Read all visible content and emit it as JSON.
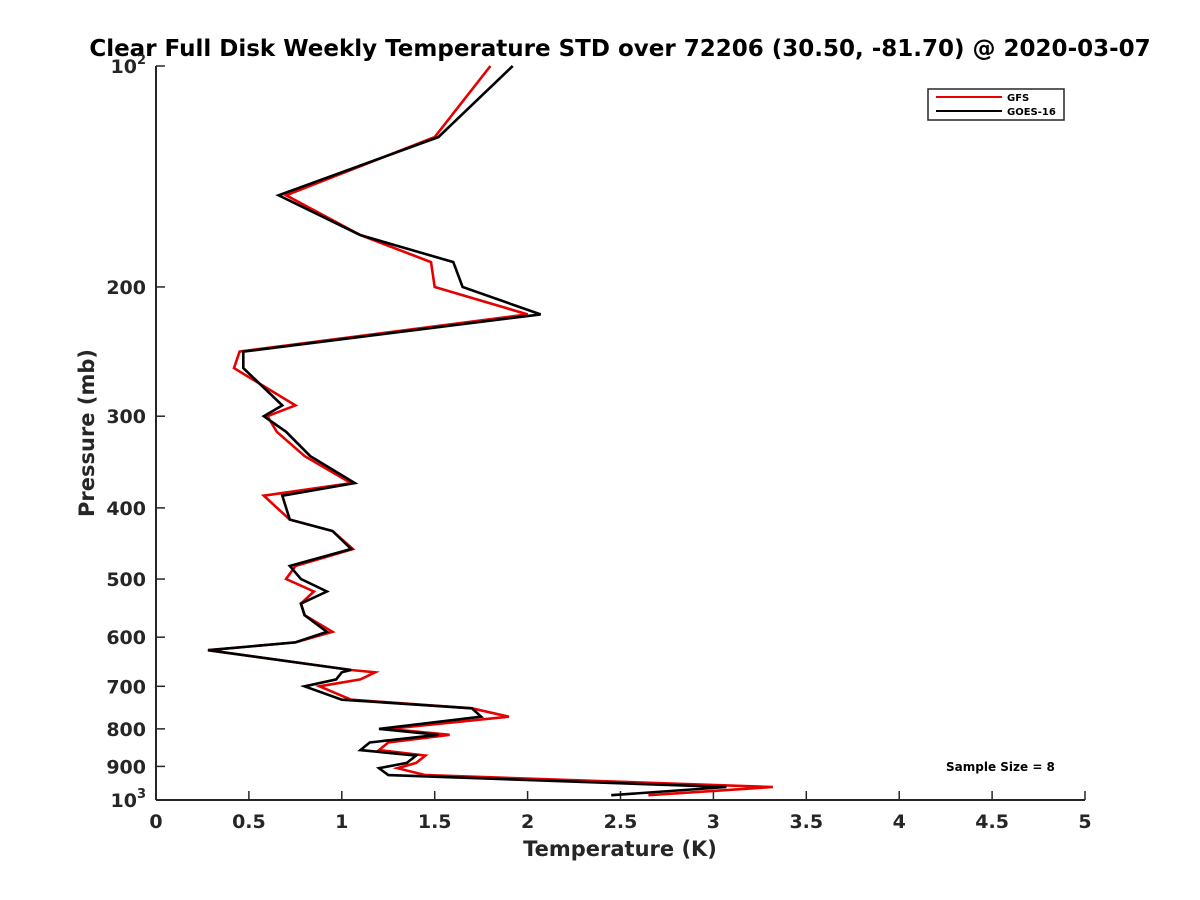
{
  "chart_data": {
    "type": "line",
    "title": "Clear Full Disk Weekly Temperature STD over 72206 (30.50, -81.70) @ 2020-03-07",
    "xlabel": "Temperature (K)",
    "ylabel": "Pressure (mb)",
    "xlim": [
      0,
      5
    ],
    "ylim": [
      1000,
      100
    ],
    "yscale": "log",
    "y_reversed": true,
    "grid": false,
    "legend_position": "top-right",
    "xticks": [
      {
        "value": 0,
        "label": "0"
      },
      {
        "value": 0.5,
        "label": "0.5"
      },
      {
        "value": 1,
        "label": "1"
      },
      {
        "value": 1.5,
        "label": "1.5"
      },
      {
        "value": 2,
        "label": "2"
      },
      {
        "value": 2.5,
        "label": "2.5"
      },
      {
        "value": 3,
        "label": "3"
      },
      {
        "value": 3.5,
        "label": "3.5"
      },
      {
        "value": 4,
        "label": "4"
      },
      {
        "value": 4.5,
        "label": "4.5"
      },
      {
        "value": 5,
        "label": "5"
      }
    ],
    "yticks": [
      {
        "value": 100,
        "label": "10",
        "sup": "2"
      },
      {
        "value": 200,
        "label": "200"
      },
      {
        "value": 300,
        "label": "300"
      },
      {
        "value": 400,
        "label": "400"
      },
      {
        "value": 500,
        "label": "500"
      },
      {
        "value": 600,
        "label": "600"
      },
      {
        "value": 700,
        "label": "700"
      },
      {
        "value": 800,
        "label": "800"
      },
      {
        "value": 900,
        "label": "900"
      },
      {
        "value": 1000,
        "label": "10",
        "sup": "3"
      }
    ],
    "series": [
      {
        "name": "GFS",
        "color": "#e60000",
        "points": [
          [
            1.8,
            100
          ],
          [
            1.5,
            125
          ],
          [
            0.7,
            150
          ],
          [
            1.1,
            170
          ],
          [
            1.48,
            185
          ],
          [
            1.5,
            200
          ],
          [
            2.0,
            218
          ],
          [
            0.45,
            245
          ],
          [
            0.42,
            258
          ],
          [
            0.75,
            290
          ],
          [
            0.6,
            300
          ],
          [
            0.65,
            315
          ],
          [
            0.8,
            340
          ],
          [
            1.05,
            370
          ],
          [
            0.58,
            385
          ],
          [
            0.72,
            415
          ],
          [
            0.95,
            430
          ],
          [
            1.06,
            455
          ],
          [
            0.75,
            480
          ],
          [
            0.7,
            500
          ],
          [
            0.85,
            520
          ],
          [
            0.78,
            540
          ],
          [
            0.8,
            560
          ],
          [
            0.95,
            590
          ],
          [
            0.75,
            610
          ],
          [
            0.28,
            625
          ],
          [
            1.05,
            665
          ],
          [
            1.18,
            670
          ],
          [
            1.1,
            685
          ],
          [
            0.88,
            700
          ],
          [
            1.05,
            730
          ],
          [
            1.7,
            750
          ],
          [
            1.9,
            770
          ],
          [
            1.25,
            800
          ],
          [
            1.58,
            815
          ],
          [
            1.25,
            835
          ],
          [
            1.2,
            855
          ],
          [
            1.45,
            870
          ],
          [
            1.4,
            890
          ],
          [
            1.3,
            905
          ],
          [
            1.45,
            925
          ],
          [
            3.32,
            960
          ],
          [
            2.65,
            985
          ]
        ]
      },
      {
        "name": "GOES-16",
        "color": "#000000",
        "points": [
          [
            1.92,
            100
          ],
          [
            1.52,
            125
          ],
          [
            0.66,
            150
          ],
          [
            1.1,
            170
          ],
          [
            1.6,
            185
          ],
          [
            1.65,
            200
          ],
          [
            2.07,
            218
          ],
          [
            0.47,
            245
          ],
          [
            0.47,
            258
          ],
          [
            0.68,
            290
          ],
          [
            0.58,
            300
          ],
          [
            0.7,
            315
          ],
          [
            0.83,
            340
          ],
          [
            1.07,
            370
          ],
          [
            0.68,
            385
          ],
          [
            0.72,
            415
          ],
          [
            0.95,
            430
          ],
          [
            1.05,
            455
          ],
          [
            0.72,
            480
          ],
          [
            0.78,
            500
          ],
          [
            0.92,
            520
          ],
          [
            0.78,
            540
          ],
          [
            0.8,
            560
          ],
          [
            0.92,
            590
          ],
          [
            0.75,
            610
          ],
          [
            0.28,
            625
          ],
          [
            1.05,
            665
          ],
          [
            1.0,
            670
          ],
          [
            0.97,
            685
          ],
          [
            0.8,
            700
          ],
          [
            1.0,
            730
          ],
          [
            1.7,
            750
          ],
          [
            1.75,
            770
          ],
          [
            1.2,
            800
          ],
          [
            1.52,
            815
          ],
          [
            1.15,
            835
          ],
          [
            1.1,
            855
          ],
          [
            1.4,
            870
          ],
          [
            1.35,
            890
          ],
          [
            1.2,
            905
          ],
          [
            1.25,
            925
          ],
          [
            3.07,
            960
          ],
          [
            2.45,
            985
          ]
        ]
      }
    ],
    "annotations": [
      {
        "text": "Sample Size = 8"
      }
    ]
  }
}
